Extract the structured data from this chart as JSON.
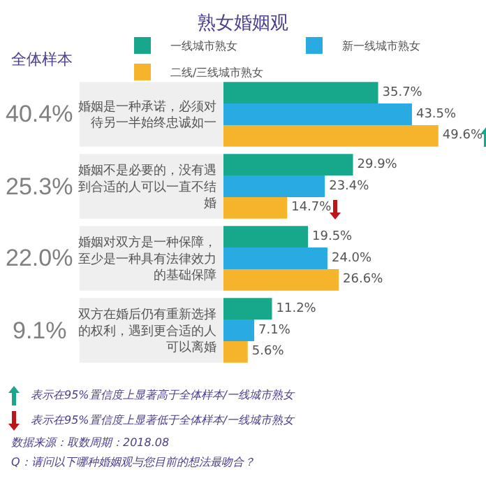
{
  "chart_data": {
    "type": "bar",
    "orientation": "horizontal",
    "title": "熟女婚姻观",
    "categories": [
      "婚姻是一种承诺，必须对待另一半始终忠诚如一",
      "婚姻不是必要的，没有遇到合适的人可以一直不结婚",
      "婚姻对双方是一种保障，至少是一种具有法律效力的基础保障",
      "双方在婚后仍有重新选择的权利，遇到更合适的人可以离婚"
    ],
    "series": [
      {
        "name": "一线城市熟女",
        "color": "#17a88b",
        "values": [
          35.7,
          29.9,
          19.5,
          11.2
        ],
        "value_labels": [
          "35.7%",
          "29.9%",
          "19.5%",
          "11.2%"
        ]
      },
      {
        "name": "新一线城市熟女",
        "color": "#29abe2",
        "values": [
          43.5,
          23.4,
          24.0,
          7.1
        ],
        "value_labels": [
          "43.5%",
          "23.4%",
          "24.0%",
          "7.1%"
        ]
      },
      {
        "name": "二线/三线城市熟女",
        "color": "#f6b42c",
        "values": [
          49.6,
          14.7,
          26.6,
          5.6
        ],
        "value_labels": [
          "49.6%",
          "14.7%",
          "26.6%",
          "5.6%"
        ]
      }
    ],
    "tick_labels": "y",
    "grid": false,
    "legend": "top",
    "annotations": [
      "全体样本",
      "40.4%",
      "25.3%",
      "22.0%",
      "9.1%",
      "表示在95%置信度上显著高于全体样本/一线城市熟女",
      "表示在95%置信度上显著低于全体样本/一线城市熟女",
      "数据来源：取数周期：2018.08",
      "Q：请问以下哪种婚姻观与您目前的想法最吻合？"
    ]
  }
}
